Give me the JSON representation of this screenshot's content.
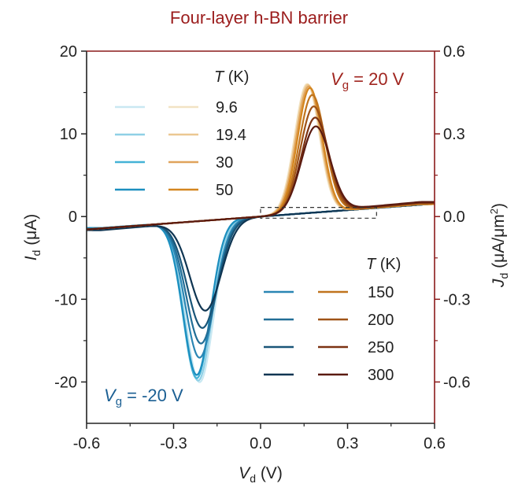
{
  "chart_data": {
    "type": "line",
    "title": "Four-layer h-BN barrier",
    "xlabel": "V_d (V)",
    "ylabel_left": "I_d (μA)",
    "ylabel_right": "J_d (μA/μm²)",
    "xlim": [
      -0.6,
      0.6
    ],
    "ylim_left": [
      -25,
      20
    ],
    "ylim_right": [
      -0.75,
      0.6
    ],
    "xticks": [
      "-0.6",
      "-0.3",
      "0.0",
      "0.3",
      "0.6"
    ],
    "yticks_left": [
      "20",
      "10",
      "0",
      "-10",
      "-20"
    ],
    "yticks_right": [
      "0.6",
      "0.3",
      "0.0",
      "-0.3",
      "-0.6"
    ],
    "legend_top": {
      "title": "T (K)",
      "temperatures": [
        "9.6",
        "19.4",
        "30",
        "50"
      ]
    },
    "legend_bottom": {
      "title": "T (K)",
      "temperatures": [
        "150",
        "200",
        "250",
        "300"
      ]
    },
    "annotations": {
      "vg_pos": "V_g = 20 V",
      "vg_neg": "V_g = -20 V"
    },
    "dashed_box": {
      "x": [
        0.0,
        0.4
      ],
      "y": [
        -0.2,
        1.1
      ]
    },
    "series": [
      {
        "name": "Vg=-20 V, T=9.6 K",
        "gate": -20,
        "T": 9.6,
        "color": "#c9e8f2",
        "peak_x": -0.21,
        "peak_y": -19.5,
        "width": 0.068,
        "tail": -1.6
      },
      {
        "name": "Vg=-20 V, T=19.4 K",
        "gate": -20,
        "T": 19.4,
        "color": "#8fd0e6",
        "peak_x": -0.215,
        "peak_y": -19.3,
        "width": 0.067,
        "tail": -1.6
      },
      {
        "name": "Vg=-20 V, T=30 K",
        "gate": -20,
        "T": 30,
        "color": "#45b2d6",
        "peak_x": -0.22,
        "peak_y": -19.0,
        "width": 0.066,
        "tail": -1.6
      },
      {
        "name": "Vg=-20 V, T=50 K",
        "gate": -20,
        "T": 50,
        "color": "#1d8fbf",
        "peak_x": -0.22,
        "peak_y": -18.6,
        "width": 0.066,
        "tail": -1.6
      },
      {
        "name": "Vg=-20 V, T=150 K",
        "gate": -20,
        "T": 150,
        "color": "#2a86b4",
        "peak_x": -0.21,
        "peak_y": -16.5,
        "width": 0.07,
        "tail": -1.7
      },
      {
        "name": "Vg=-20 V, T=200 K",
        "gate": -20,
        "T": 200,
        "color": "#226e96",
        "peak_x": -0.205,
        "peak_y": -14.8,
        "width": 0.072,
        "tail": -1.7
      },
      {
        "name": "Vg=-20 V, T=250 K",
        "gate": -20,
        "T": 250,
        "color": "#195578",
        "peak_x": -0.2,
        "peak_y": -12.9,
        "width": 0.074,
        "tail": -1.8
      },
      {
        "name": "Vg=-20 V, T=300 K",
        "gate": -20,
        "T": 300,
        "color": "#0f3552",
        "peak_x": -0.19,
        "peak_y": -10.8,
        "width": 0.076,
        "tail": -1.9
      },
      {
        "name": "Vg=20 V, T=9.6 K",
        "gate": 20,
        "T": 9.6,
        "color": "#f2e3c4",
        "peak_x": 0.16,
        "peak_y": 15.6,
        "width": 0.06,
        "tail": 1.6
      },
      {
        "name": "Vg=20 V, T=19.4 K",
        "gate": 20,
        "T": 19.4,
        "color": "#ebc892",
        "peak_x": 0.163,
        "peak_y": 15.5,
        "width": 0.06,
        "tail": 1.6
      },
      {
        "name": "Vg=20 V, T=30 K",
        "gate": 20,
        "T": 30,
        "color": "#e0a35c",
        "peak_x": 0.166,
        "peak_y": 15.3,
        "width": 0.06,
        "tail": 1.6
      },
      {
        "name": "Vg=20 V, T=50 K",
        "gate": 20,
        "T": 50,
        "color": "#d4861f",
        "peak_x": 0.17,
        "peak_y": 15.1,
        "width": 0.06,
        "tail": 1.6
      },
      {
        "name": "Vg=20 V, T=150 K",
        "gate": 20,
        "T": 150,
        "color": "#c0741d",
        "peak_x": 0.178,
        "peak_y": 14.2,
        "width": 0.063,
        "tail": 1.7
      },
      {
        "name": "Vg=20 V, T=200 K",
        "gate": 20,
        "T": 200,
        "color": "#9f5317",
        "peak_x": 0.183,
        "peak_y": 12.8,
        "width": 0.065,
        "tail": 1.7
      },
      {
        "name": "Vg=20 V, T=250 K",
        "gate": 20,
        "T": 250,
        "color": "#7c3212",
        "peak_x": 0.188,
        "peak_y": 11.4,
        "width": 0.067,
        "tail": 1.8
      },
      {
        "name": "Vg=20 V, T=300 K",
        "gate": 20,
        "T": 300,
        "color": "#5a1a10",
        "peak_x": 0.19,
        "peak_y": 10.3,
        "width": 0.07,
        "tail": 1.9
      }
    ],
    "colors": {
      "axis": "#8b1a1a",
      "title": "#9b1c1c",
      "vg_pos": "#a0251f",
      "vg_neg": "#1b5f93"
    }
  }
}
